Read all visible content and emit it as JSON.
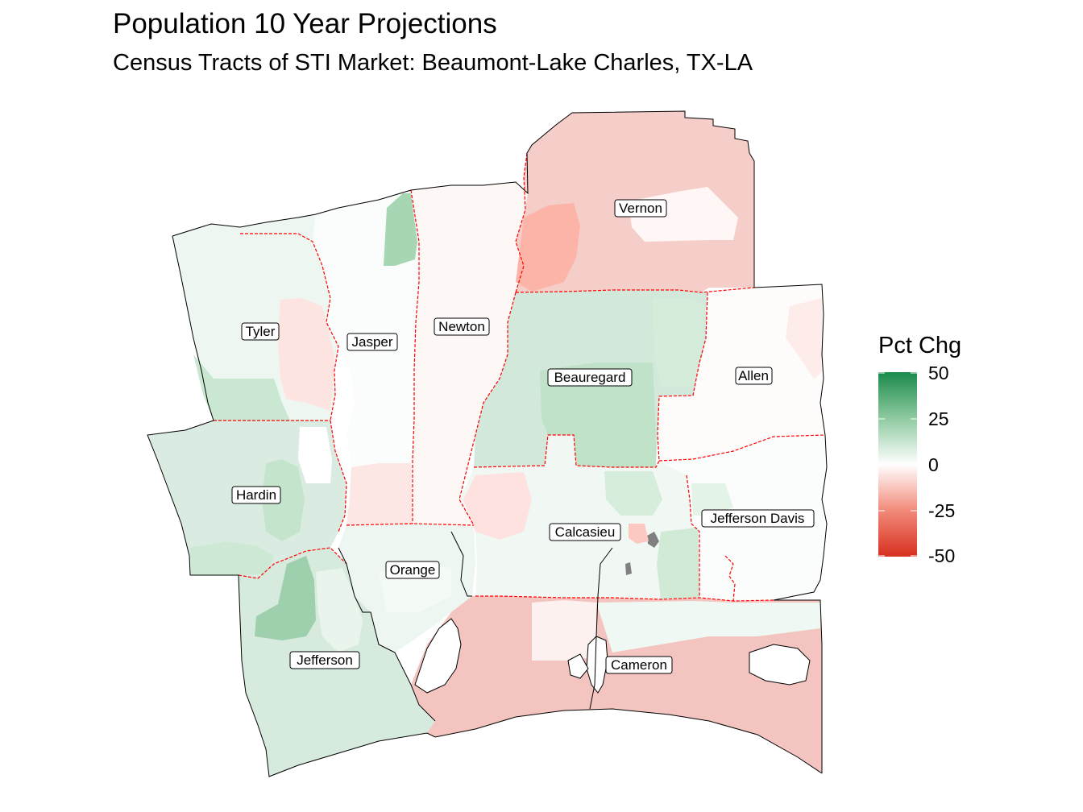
{
  "title": "Population 10 Year Projections",
  "subtitle": "Census Tracts of STI Market: Beaumont-Lake Charles, TX-LA",
  "legend": {
    "title": "Pct Chg",
    "ticks": [
      "50",
      "25",
      "0",
      "-25",
      "-50"
    ],
    "tick_values": [
      50,
      25,
      0,
      -25,
      -50
    ],
    "scale_min": -50,
    "scale_max": 50,
    "low_color": "#d7301f",
    "mid_color": "#ffffff",
    "high_color": "#1a8a4a"
  },
  "colors": {
    "county_boundary": "#ff0000",
    "market_outline": "#000000",
    "water": "#ffffff",
    "missing": "#808080"
  },
  "counties": [
    {
      "key": "vernon",
      "name": "Vernon",
      "pct_chg": -12
    },
    {
      "key": "tyler",
      "name": "Tyler",
      "pct_chg": 4
    },
    {
      "key": "jasper",
      "name": "Jasper",
      "pct_chg": 1
    },
    {
      "key": "newton",
      "name": "Newton",
      "pct_chg": -2
    },
    {
      "key": "beauregard",
      "name": "Beauregard",
      "pct_chg": 10
    },
    {
      "key": "allen",
      "name": "Allen",
      "pct_chg": -1
    },
    {
      "key": "hardin",
      "name": "Hardin",
      "pct_chg": 8
    },
    {
      "key": "calcasieu",
      "name": "Calcasieu",
      "pct_chg": 3
    },
    {
      "key": "jefferson_davis",
      "name": "Jefferson Davis",
      "pct_chg": 1
    },
    {
      "key": "orange",
      "name": "Orange",
      "pct_chg": 4
    },
    {
      "key": "jefferson",
      "name": "Jefferson",
      "pct_chg": 9
    },
    {
      "key": "cameron",
      "name": "Cameron",
      "pct_chg": -14
    }
  ]
}
